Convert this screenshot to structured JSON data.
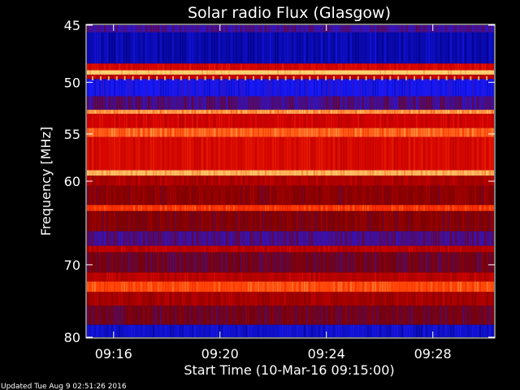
{
  "chart_data": {
    "type": "heatmap",
    "title": "Solar radio Flux (Glasgow)",
    "xlabel": "Start Time (10-Mar-16 09:15:00)",
    "ylabel": "Frequency [MHz]",
    "ylim": [
      45,
      80
    ],
    "yscale": "log",
    "yticks": [
      45,
      50,
      55,
      60,
      70,
      80
    ],
    "xticks": [
      "09:16",
      "09:20",
      "09:24",
      "09:28"
    ],
    "xlim_minutes": [
      0,
      15.3
    ],
    "xtick_minutes": [
      1,
      5,
      9,
      13
    ],
    "colormap": [
      "#00007a",
      "#1a1aff",
      "#7a0000",
      "#d00000",
      "#ff3a00",
      "#ffd070"
    ],
    "background_color": "#000000",
    "axis_color": "#ffffff",
    "bands": [
      {
        "f0": 45,
        "f1": 45.6,
        "level": 0.28
      },
      {
        "f0": 45.6,
        "f1": 48.3,
        "level": 0.08
      },
      {
        "f0": 48.3,
        "f1": 48.9,
        "level": 0.62
      },
      {
        "f0": 48.9,
        "f1": 49.3,
        "level": 1.0
      },
      {
        "f0": 49.3,
        "f1": 49.7,
        "level": 0.55
      },
      {
        "f0": 49.7,
        "f1": 51.3,
        "level": 0.18
      },
      {
        "f0": 51.3,
        "f1": 52.6,
        "level": 0.3
      },
      {
        "f0": 52.6,
        "f1": 53.0,
        "level": 0.92
      },
      {
        "f0": 53.0,
        "f1": 54.4,
        "level": 0.6
      },
      {
        "f0": 54.4,
        "f1": 55.3,
        "level": 0.85
      },
      {
        "f0": 55.3,
        "f1": 58.8,
        "level": 0.63
      },
      {
        "f0": 58.8,
        "f1": 59.4,
        "level": 0.96
      },
      {
        "f0": 59.4,
        "f1": 60.5,
        "level": 0.52
      },
      {
        "f0": 60.5,
        "f1": 62.7,
        "level": 0.44
      },
      {
        "f0": 62.7,
        "f1": 63.4,
        "level": 0.78
      },
      {
        "f0": 63.4,
        "f1": 65.8,
        "level": 0.42
      },
      {
        "f0": 65.8,
        "f1": 67.6,
        "level": 0.3
      },
      {
        "f0": 67.6,
        "f1": 68.4,
        "level": 0.55
      },
      {
        "f0": 68.4,
        "f1": 71.0,
        "level": 0.38
      },
      {
        "f0": 71.0,
        "f1": 72.2,
        "level": 0.55
      },
      {
        "f0": 72.2,
        "f1": 73.6,
        "level": 0.82
      },
      {
        "f0": 73.6,
        "f1": 75.5,
        "level": 0.5
      },
      {
        "f0": 75.5,
        "f1": 78.2,
        "level": 0.38
      },
      {
        "f0": 78.2,
        "f1": 80,
        "level": 0.12
      }
    ]
  },
  "footer": {
    "updated_text": "Updated Tue Aug  9 02:51:26 2016"
  }
}
